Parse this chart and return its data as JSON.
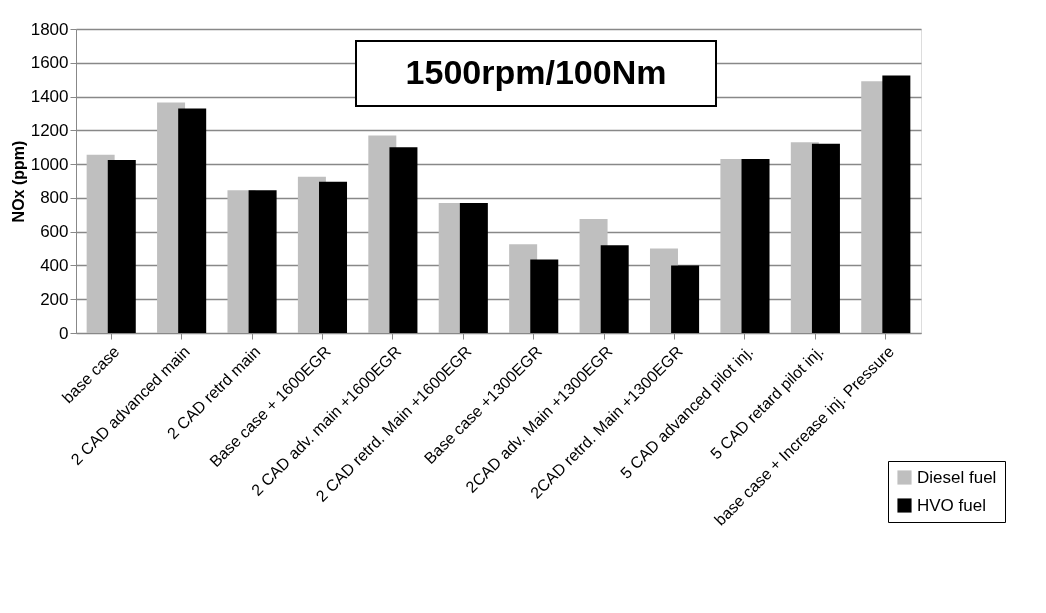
{
  "chart_data": {
    "type": "bar",
    "ylabel": "NOx (ppm)",
    "categories": [
      "base case",
      "2 CAD advanced main",
      "2 CAD retrd main",
      "Base case + 1600EGR",
      "2 CAD adv. main +1600EGR",
      "2 CAD retrd. Main +1600EGR",
      "Base case +1300EGR",
      "2CAD adv. Main +1300EGR",
      "2CAD retrd. Main +1300EGR",
      "5 CAD advanced pilot inj.",
      "5 CAD retard pilot inj.",
      "base case + Increase inj. Pressure"
    ],
    "series": [
      {
        "name": "Diesel fuel",
        "color": "#bfbfbf",
        "values": [
          1055,
          1365,
          845,
          925,
          1170,
          770,
          525,
          675,
          500,
          1030,
          1130,
          1490
        ]
      },
      {
        "name": "HVO fuel",
        "color": "#000000",
        "values": [
          1025,
          1330,
          845,
          895,
          1100,
          770,
          435,
          520,
          400,
          1030,
          1120,
          1525
        ]
      }
    ],
    "ylim": [
      0,
      1800
    ],
    "yticks": [
      0,
      200,
      400,
      600,
      800,
      1000,
      1200,
      1400,
      1600,
      1800
    ],
    "grid": "y",
    "legend": "bottom right",
    "annotations": [
      "1500rpm/100Nm"
    ]
  }
}
